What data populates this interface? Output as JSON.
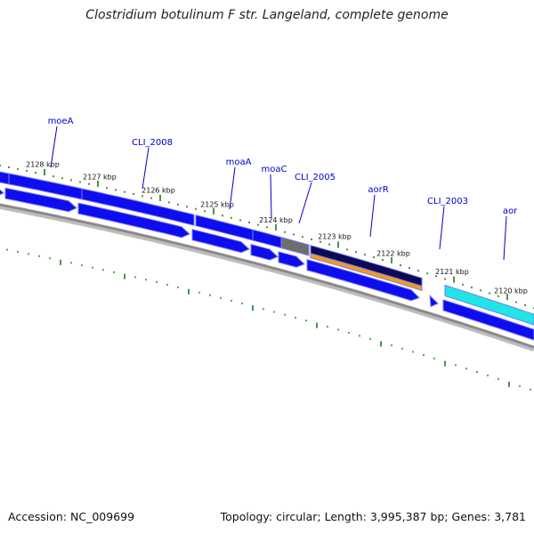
{
  "title": "Clostridium botulinum F str. Langeland, complete genome",
  "footer": {
    "accession": "Accession: NC_009699",
    "summary": "Topology: circular; Length: 3,995,387 bp; Genes: 3,781"
  },
  "colors": {
    "gene_blue": "#0d0df0",
    "gene_light": "#7b7bf5",
    "gray_block": "#6e6e6e",
    "dark_navy": "#0a0a55",
    "orange": "#f39a1f",
    "cyan": "#1ee6e6",
    "backbone": "#8a8a8a",
    "tick_green": "#1a7a1a",
    "label_blue": "#0000cc"
  },
  "ticks": [
    "2128 kbp",
    "2127 kbp",
    "2126 kbp",
    "2125 kbp",
    "2124 kbp",
    "2123 kbp",
    "2122 kbp",
    "2121 kbp",
    "2120 kbp"
  ],
  "genes": [
    "moeA",
    "CLI_2008",
    "moaA",
    "moaC",
    "CLI_2005",
    "aorR",
    "CLI_2003",
    "aor"
  ]
}
